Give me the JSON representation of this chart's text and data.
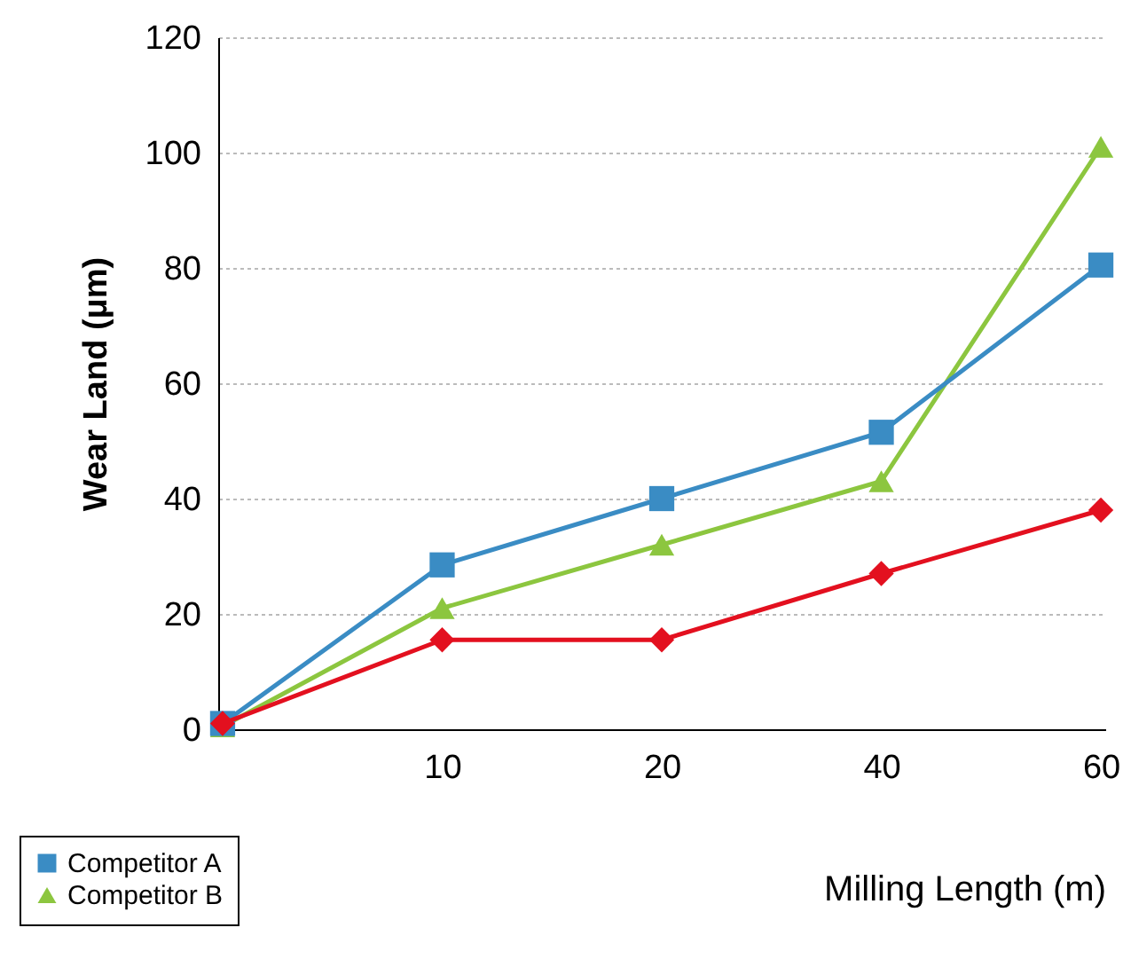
{
  "chart_data": {
    "type": "line",
    "xlabel": "Milling Length (m)",
    "ylabel": "Wear Land (μm)",
    "categories": [
      null,
      "10",
      "20",
      "40",
      "60"
    ],
    "series": [
      {
        "color": "#e3101f",
        "marker": "diamond",
        "values": [
          1,
          15.5,
          15.5,
          27,
          38
        ]
      },
      {
        "name": "Competitor A",
        "color": "#3a8cc4",
        "marker": "square",
        "values": [
          1,
          28.5,
          40,
          51.5,
          80.5
        ]
      },
      {
        "name": "Competitor B",
        "color": "#8cc63f",
        "marker": "triangle",
        "values": [
          0.5,
          21,
          32,
          43,
          101
        ]
      }
    ],
    "ylim": [
      0,
      120
    ],
    "yticks": [
      0,
      20,
      40,
      60,
      80,
      100,
      120
    ],
    "grid": "y",
    "legend": "bottom left",
    "line_style": "solid"
  }
}
